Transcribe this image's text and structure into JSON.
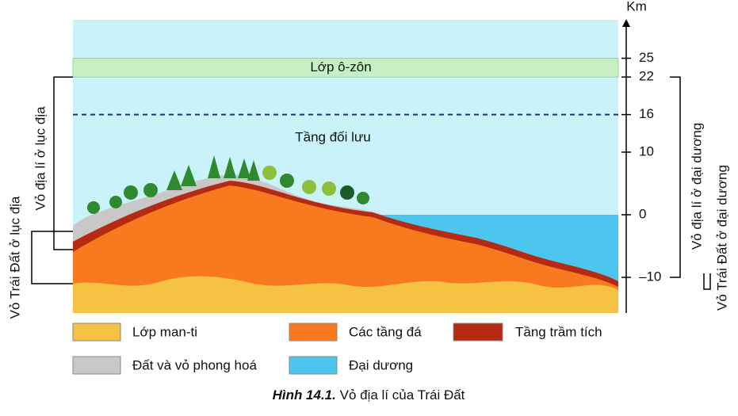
{
  "axis": {
    "unit": "Km",
    "ticks": [
      25,
      22,
      16,
      10,
      0,
      {
        "value": -10,
        "label": "–10"
      }
    ]
  },
  "layers": {
    "ozone": "Lớp ô-zôn",
    "troposphere": "Tầng đối lưu"
  },
  "brackets": {
    "left_outer": "Vỏ Trái Đất ở lục địa",
    "left_inner": "Vỏ địa lí ở lục địa",
    "right_inner": "Vỏ địa lí ở đại dương",
    "right_outer": "Vỏ Trái Đất ở đại dương"
  },
  "legend": [
    {
      "label": "Lớp man-ti",
      "color": "#f6c244"
    },
    {
      "label": "Các tầng đá",
      "color": "#f97a1e"
    },
    {
      "label": "Tầng trầm tích",
      "color": "#b52a12"
    },
    {
      "label": "Đất và vỏ phong hoá",
      "color": "#c8c8c8"
    },
    {
      "label": "Đại dương",
      "color": "#4cc6ee"
    }
  ],
  "caption": {
    "number": "Hình 14.1.",
    "text": "Vỏ địa lí của Trái Đất"
  }
}
